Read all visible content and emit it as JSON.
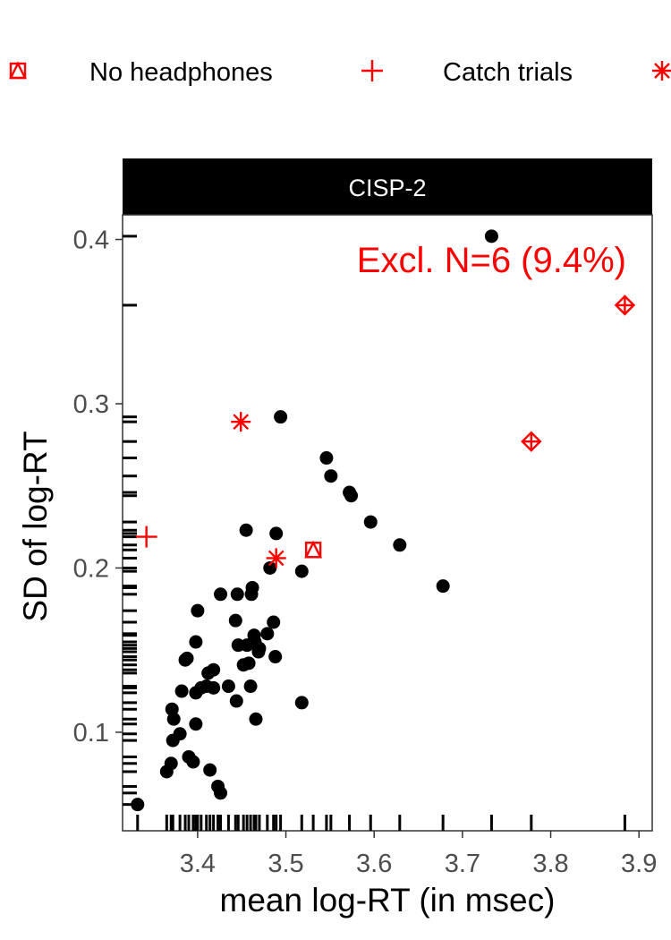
{
  "chart_data": {
    "type": "scatter",
    "facet_label": "CISP-2",
    "annotation": "Excl. N=6 (9.4%)",
    "xlabel": "mean log-RT (in msec)",
    "ylabel": "SD of log-RT",
    "xlim": [
      3.315,
      3.915
    ],
    "ylim": [
      0.04,
      0.415
    ],
    "x_ticks": [
      3.4,
      3.5,
      3.6,
      3.7,
      3.8,
      3.9
    ],
    "x_tick_labels": [
      "3.4",
      "3.5",
      "3.6",
      "3.7",
      "3.8",
      "3.9"
    ],
    "y_ticks": [
      0.1,
      0.2,
      0.3,
      0.4
    ],
    "y_tick_labels": [
      "0.1",
      "0.2",
      "0.3",
      "0.4"
    ],
    "grid": false,
    "legend_position": "top",
    "legend": [
      {
        "label": "No headphones",
        "shape": "square-triangle",
        "color": "#ff0000"
      },
      {
        "label": "Catch trials",
        "shape": "plus",
        "color": "#ff0000"
      },
      {
        "label": "",
        "shape": "asterisk",
        "color": "#ff0000"
      }
    ],
    "colors": {
      "included": "#000000",
      "excluded": "#ff0000",
      "strip": "#000000",
      "strip_text": "#ffffff"
    },
    "included_points": [
      [
        3.332,
        0.056
      ],
      [
        3.365,
        0.076
      ],
      [
        3.37,
        0.081
      ],
      [
        3.372,
        0.095
      ],
      [
        3.373,
        0.108
      ],
      [
        3.371,
        0.114
      ],
      [
        3.38,
        0.099
      ],
      [
        3.388,
        0.145
      ],
      [
        3.386,
        0.144
      ],
      [
        3.382,
        0.125
      ],
      [
        3.39,
        0.085
      ],
      [
        3.395,
        0.082
      ],
      [
        3.398,
        0.105
      ],
      [
        3.398,
        0.124
      ],
      [
        3.398,
        0.155
      ],
      [
        3.4,
        0.174
      ],
      [
        3.404,
        0.127
      ],
      [
        3.41,
        0.128
      ],
      [
        3.412,
        0.136
      ],
      [
        3.418,
        0.138
      ],
      [
        3.418,
        0.127
      ],
      [
        3.414,
        0.077
      ],
      [
        3.423,
        0.067
      ],
      [
        3.426,
        0.063
      ],
      [
        3.426,
        0.184
      ],
      [
        3.435,
        0.128
      ],
      [
        3.443,
        0.168
      ],
      [
        3.444,
        0.119
      ],
      [
        3.445,
        0.184
      ],
      [
        3.446,
        0.153
      ],
      [
        3.452,
        0.141
      ],
      [
        3.455,
        0.223
      ],
      [
        3.456,
        0.153
      ],
      [
        3.458,
        0.142
      ],
      [
        3.46,
        0.128
      ],
      [
        3.461,
        0.184
      ],
      [
        3.462,
        0.188
      ],
      [
        3.464,
        0.159
      ],
      [
        3.465,
        0.155
      ],
      [
        3.466,
        0.108
      ],
      [
        3.469,
        0.149
      ],
      [
        3.47,
        0.151
      ],
      [
        3.479,
        0.16
      ],
      [
        3.482,
        0.2
      ],
      [
        3.486,
        0.167
      ],
      [
        3.488,
        0.146
      ],
      [
        3.489,
        0.221
      ],
      [
        3.494,
        0.292
      ],
      [
        3.518,
        0.198
      ],
      [
        3.518,
        0.118
      ],
      [
        3.546,
        0.267
      ],
      [
        3.551,
        0.256
      ],
      [
        3.572,
        0.246
      ],
      [
        3.574,
        0.244
      ],
      [
        3.596,
        0.228
      ],
      [
        3.629,
        0.214
      ],
      [
        3.678,
        0.189
      ],
      [
        3.733,
        0.402
      ]
    ],
    "excluded_points": [
      {
        "x": 3.531,
        "y": 0.211,
        "shape": "square-triangle"
      },
      {
        "x": 3.342,
        "y": 0.219,
        "shape": "plus"
      },
      {
        "x": 3.449,
        "y": 0.289,
        "shape": "asterisk"
      },
      {
        "x": 3.489,
        "y": 0.206,
        "shape": "asterisk"
      },
      {
        "x": 3.778,
        "y": 0.277,
        "shape": "diamond-plus"
      },
      {
        "x": 3.884,
        "y": 0.36,
        "shape": "diamond-plus"
      }
    ],
    "rug_x": [
      3.332,
      3.365,
      3.37,
      3.372,
      3.38,
      3.386,
      3.39,
      3.395,
      3.398,
      3.4,
      3.404,
      3.41,
      3.414,
      3.418,
      3.423,
      3.426,
      3.435,
      3.443,
      3.446,
      3.452,
      3.456,
      3.46,
      3.464,
      3.466,
      3.47,
      3.479,
      3.486,
      3.489,
      3.494,
      3.518,
      3.531,
      3.546,
      3.551,
      3.572,
      3.596,
      3.629,
      3.678,
      3.733,
      3.778,
      3.884
    ],
    "rug_y": [
      0.056,
      0.063,
      0.067,
      0.076,
      0.081,
      0.085,
      0.095,
      0.099,
      0.105,
      0.108,
      0.114,
      0.118,
      0.124,
      0.127,
      0.128,
      0.136,
      0.138,
      0.141,
      0.144,
      0.146,
      0.149,
      0.151,
      0.153,
      0.155,
      0.159,
      0.16,
      0.167,
      0.174,
      0.184,
      0.188,
      0.189,
      0.198,
      0.2,
      0.206,
      0.211,
      0.214,
      0.219,
      0.221,
      0.223,
      0.228,
      0.244,
      0.246,
      0.256,
      0.267,
      0.277,
      0.289,
      0.292,
      0.36,
      0.402
    ]
  }
}
